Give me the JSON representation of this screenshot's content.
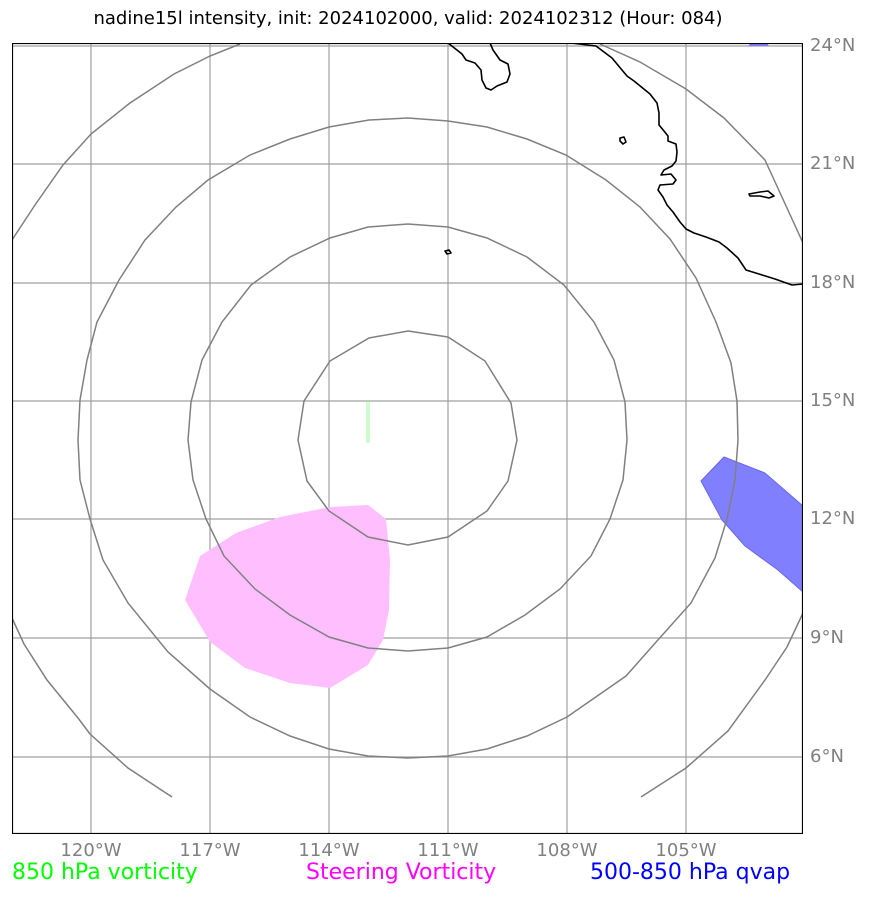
{
  "title": "nadine15l intensity, init: 2024102000, valid: 2024102312 (Hour: 084)",
  "axes": {
    "lat_labels": [
      "24°N",
      "21°N",
      "18°N",
      "15°N",
      "12°N",
      "9°N",
      "6°N"
    ],
    "lon_labels": [
      "120°W",
      "117°W",
      "114°W",
      "111°W",
      "108°W",
      "105°W"
    ]
  },
  "legend": {
    "vort850": {
      "label": "850 hPa vorticity",
      "color": "#00ff00"
    },
    "steering": {
      "label": "Steering Vorticity",
      "color": "#ff00ff"
    },
    "qvap": {
      "label": "500-850 hPa qvap",
      "color": "#0000ff"
    }
  },
  "colors": {
    "gridline": "#a0a0a0",
    "range_ring": "#808080",
    "coastline": "#000000",
    "steering_fill": "#ffbfff",
    "qvap_fill": "#8080ff",
    "vort850_fill": "#ccffcc"
  }
}
